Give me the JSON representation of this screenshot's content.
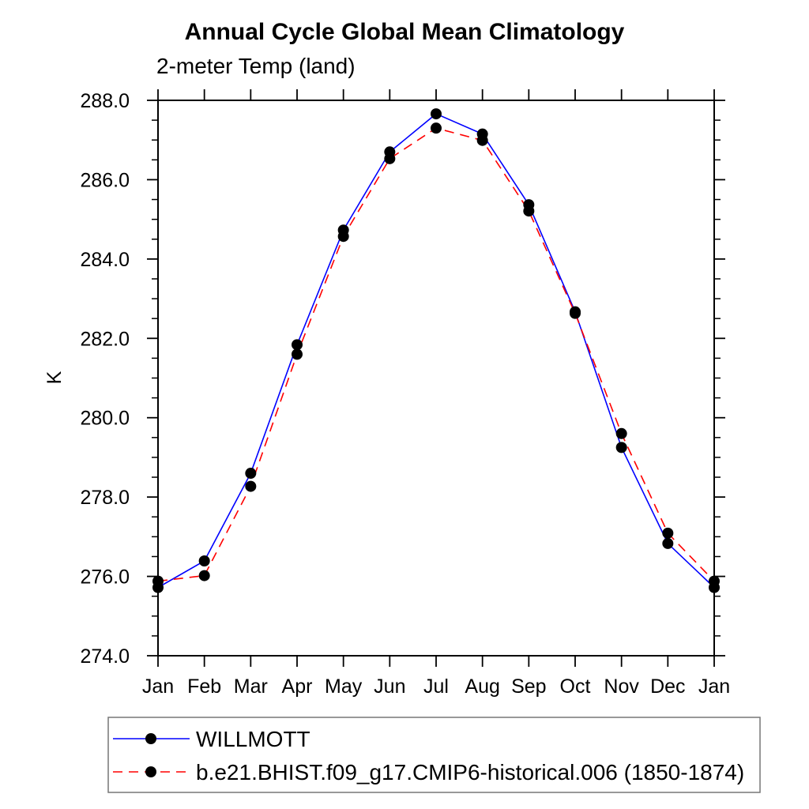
{
  "chart_data": {
    "type": "line",
    "title": "Annual Cycle Global Mean Climatology",
    "subtitle": "2-meter Temp (land)",
    "ylabel": "K",
    "xlabel": "",
    "x_categories": [
      "Jan",
      "Feb",
      "Mar",
      "Apr",
      "May",
      "Jun",
      "Jul",
      "Aug",
      "Sep",
      "Oct",
      "Nov",
      "Dec",
      "Jan"
    ],
    "ylim": [
      274.0,
      288.0
    ],
    "ytick_interval": 2.0,
    "ytick_minor_interval": 0.5,
    "ytick_labels": [
      "274.0",
      "276.0",
      "278.0",
      "280.0",
      "282.0",
      "284.0",
      "286.0",
      "288.0"
    ],
    "grid": false,
    "marker": "filled-circle",
    "marker_color": "#000000",
    "axis_color": "#000000",
    "legend_position": "bottom-left-box",
    "series": [
      {
        "name": "WILLMOTT",
        "color": "#0000ff",
        "style": "solid",
        "values": [
          275.72,
          276.39,
          278.6,
          281.84,
          284.73,
          286.7,
          287.66,
          287.15,
          285.37,
          282.67,
          279.25,
          276.83,
          275.72
        ]
      },
      {
        "name": "b.e21.BHIST.f09_g17.CMIP6-historical.006 (1850-1874)",
        "color": "#ff0000",
        "style": "dashed",
        "values": [
          275.88,
          276.02,
          278.27,
          281.6,
          284.57,
          286.53,
          287.3,
          286.99,
          285.21,
          282.63,
          279.6,
          277.09,
          275.88
        ]
      }
    ]
  }
}
